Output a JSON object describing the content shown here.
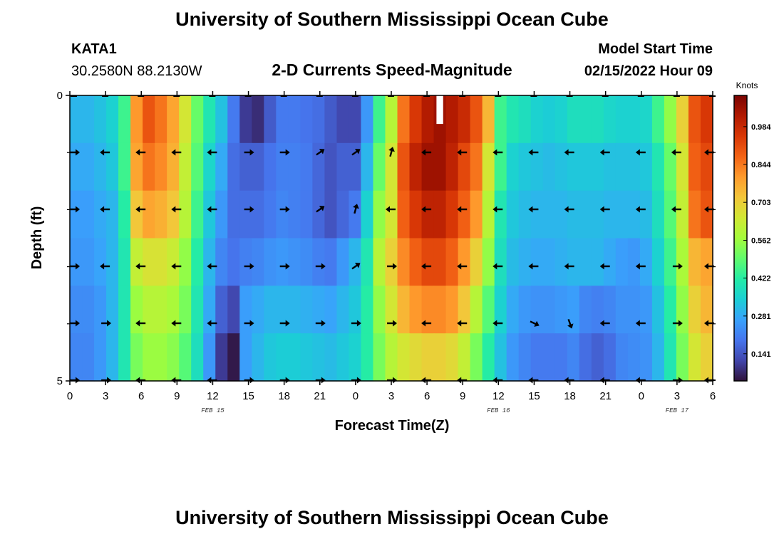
{
  "header": {
    "title": "University of Southern Mississippi Ocean Cube",
    "station": "KATA1",
    "coords": "30.2580N  88.2130W",
    "subtitle": "2-D Currents Speed-Magnitude",
    "model_label": "Model Start Time",
    "model_time": "02/15/2022 Hour 09"
  },
  "footer": {
    "title": "University of Southern Mississippi Ocean Cube"
  },
  "chart_data": {
    "type": "heatmap",
    "title": "2-D Currents Speed-Magnitude",
    "xlabel": "Forecast Time(Z)",
    "ylabel": "Depth (ft)",
    "x_ticks": [
      "0",
      "3",
      "6",
      "9",
      "12",
      "15",
      "18",
      "21",
      "0",
      "3",
      "6",
      "9",
      "12",
      "15",
      "18",
      "21",
      "0",
      "3",
      "6"
    ],
    "y_ticks": [
      "0",
      "5"
    ],
    "ylim": [
      0,
      5
    ],
    "date_labels": [
      {
        "label": "FEB 15",
        "tick_index": 4
      },
      {
        "label": "FEB 16",
        "tick_index": 12
      },
      {
        "label": "FEB 17",
        "tick_index": 17
      }
    ],
    "colorbar": {
      "label": "Knots",
      "ticks": [
        "0.984",
        "0.844",
        "0.703",
        "0.562",
        "0.422",
        "0.281",
        "0.141"
      ],
      "tick_values": [
        0.984,
        0.844,
        0.703,
        0.562,
        0.422,
        0.281,
        0.141
      ],
      "range": [
        0.04,
        1.1
      ],
      "colors": [
        "#30123b",
        "#4145ab",
        "#4675ed",
        "#39a2fc",
        "#1bcfd4",
        "#24eca6",
        "#61fc6c",
        "#a4fc3b",
        "#d1e834",
        "#f3c63a",
        "#fe9b2d",
        "#f36315",
        "#d93806",
        "#b11901",
        "#7a0402"
      ]
    },
    "speed_rows": [
      [
        0.3,
        0.3,
        0.32,
        0.35,
        0.45,
        0.8,
        0.9,
        0.85,
        0.78,
        0.65,
        0.5,
        0.4,
        0.32,
        0.2,
        0.1,
        0.08,
        0.15,
        0.2,
        0.2,
        0.19,
        0.18,
        0.15,
        0.12,
        0.12,
        0.25,
        0.45,
        0.6,
        0.85,
        0.95,
        1.02,
        1.05,
        1.02,
        0.98,
        0.9,
        0.75,
        0.45,
        0.4,
        0.38,
        0.35,
        0.34,
        0.35,
        0.38,
        0.38,
        0.38,
        0.36,
        0.35,
        0.35,
        0.36,
        0.45,
        0.55,
        0.7,
        0.9,
        0.95
      ],
      [
        0.28,
        0.28,
        0.3,
        0.33,
        0.45,
        0.78,
        0.85,
        0.82,
        0.76,
        0.62,
        0.48,
        0.36,
        0.28,
        0.18,
        0.16,
        0.16,
        0.19,
        0.21,
        0.21,
        0.2,
        0.17,
        0.14,
        0.16,
        0.16,
        0.3,
        0.5,
        0.65,
        0.9,
        1.0,
        1.05,
        1.05,
        1.0,
        0.92,
        0.85,
        0.65,
        0.45,
        0.35,
        0.33,
        0.32,
        0.31,
        0.32,
        0.33,
        0.33,
        0.33,
        0.32,
        0.32,
        0.32,
        0.33,
        0.4,
        0.5,
        0.65,
        0.88,
        0.92
      ],
      [
        0.26,
        0.26,
        0.28,
        0.3,
        0.42,
        0.72,
        0.78,
        0.76,
        0.72,
        0.6,
        0.45,
        0.33,
        0.25,
        0.18,
        0.18,
        0.18,
        0.2,
        0.22,
        0.21,
        0.2,
        0.17,
        0.14,
        0.17,
        0.2,
        0.35,
        0.55,
        0.65,
        0.88,
        0.95,
        1.0,
        1.0,
        0.95,
        0.88,
        0.8,
        0.6,
        0.4,
        0.33,
        0.31,
        0.3,
        0.3,
        0.3,
        0.31,
        0.31,
        0.31,
        0.3,
        0.3,
        0.3,
        0.31,
        0.38,
        0.48,
        0.62,
        0.85,
        0.9
      ],
      [
        0.25,
        0.25,
        0.27,
        0.3,
        0.4,
        0.62,
        0.66,
        0.66,
        0.63,
        0.55,
        0.42,
        0.3,
        0.22,
        0.19,
        0.21,
        0.22,
        0.24,
        0.25,
        0.24,
        0.23,
        0.21,
        0.2,
        0.25,
        0.3,
        0.4,
        0.6,
        0.7,
        0.82,
        0.88,
        0.92,
        0.92,
        0.88,
        0.8,
        0.7,
        0.55,
        0.38,
        0.31,
        0.29,
        0.28,
        0.28,
        0.29,
        0.3,
        0.3,
        0.3,
        0.28,
        0.26,
        0.25,
        0.28,
        0.35,
        0.45,
        0.58,
        0.75,
        0.78
      ],
      [
        0.23,
        0.23,
        0.25,
        0.3,
        0.4,
        0.56,
        0.6,
        0.6,
        0.58,
        0.52,
        0.4,
        0.28,
        0.16,
        0.12,
        0.26,
        0.28,
        0.3,
        0.3,
        0.3,
        0.29,
        0.28,
        0.27,
        0.3,
        0.33,
        0.42,
        0.55,
        0.65,
        0.75,
        0.8,
        0.82,
        0.82,
        0.8,
        0.72,
        0.6,
        0.48,
        0.35,
        0.28,
        0.25,
        0.24,
        0.24,
        0.25,
        0.26,
        0.22,
        0.21,
        0.22,
        0.24,
        0.24,
        0.25,
        0.32,
        0.42,
        0.55,
        0.7,
        0.75
      ],
      [
        0.22,
        0.22,
        0.25,
        0.3,
        0.4,
        0.52,
        0.56,
        0.56,
        0.54,
        0.48,
        0.38,
        0.25,
        0.1,
        0.05,
        0.26,
        0.3,
        0.33,
        0.34,
        0.34,
        0.33,
        0.32,
        0.31,
        0.33,
        0.35,
        0.42,
        0.52,
        0.6,
        0.65,
        0.68,
        0.7,
        0.7,
        0.68,
        0.62,
        0.52,
        0.42,
        0.32,
        0.25,
        0.22,
        0.2,
        0.2,
        0.2,
        0.22,
        0.18,
        0.16,
        0.18,
        0.22,
        0.23,
        0.24,
        0.3,
        0.4,
        0.52,
        0.65,
        0.7
      ]
    ],
    "vector_rows": [
      [
        "E",
        "W",
        "W",
        "W",
        "W",
        "E",
        "E",
        "NE",
        "NE",
        "N",
        "W",
        "W",
        "W",
        "W",
        "W",
        "W",
        "W",
        "W",
        "W"
      ],
      [
        "E",
        "W",
        "W",
        "W",
        "W",
        "E",
        "E",
        "NE",
        "N",
        "W",
        "W",
        "W",
        "W",
        "W",
        "W",
        "W",
        "W",
        "W",
        "W"
      ],
      [
        "E",
        "W",
        "W",
        "W",
        "W",
        "E",
        "E",
        "E",
        "NE",
        "E",
        "W",
        "W",
        "W",
        "W",
        "W",
        "W",
        "W",
        "E",
        "W"
      ],
      [
        "E",
        "E",
        "W",
        "W",
        "W",
        "E",
        "E",
        "E",
        "E",
        "E",
        "W",
        "W",
        "W",
        "SE",
        "S",
        "W",
        "W",
        "E",
        "W"
      ],
      [
        "E",
        "E",
        "W",
        "W",
        "W",
        "E",
        "E",
        "E",
        "E",
        "E",
        "W",
        "W",
        "W",
        "W",
        "W",
        "W",
        "W",
        "E",
        "W"
      ]
    ],
    "missing_cells": [
      {
        "col": 30,
        "row": 0
      }
    ]
  }
}
